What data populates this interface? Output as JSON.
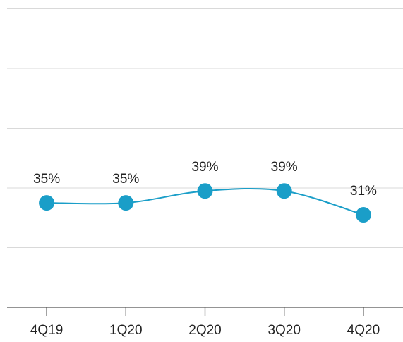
{
  "chart_data": {
    "type": "line",
    "categories": [
      "4Q19",
      "1Q20",
      "2Q20",
      "3Q20",
      "4Q20"
    ],
    "series": [
      {
        "color": "#1a9ec8",
        "values": [
          35,
          35,
          39,
          39,
          31
        ],
        "value_labels": [
          "35%",
          "35%",
          "39%",
          "39%",
          "31%"
        ]
      }
    ],
    "ylim": [
      0,
      100
    ],
    "yticks": [
      0,
      20,
      40,
      60,
      80,
      100
    ],
    "grid": true
  }
}
